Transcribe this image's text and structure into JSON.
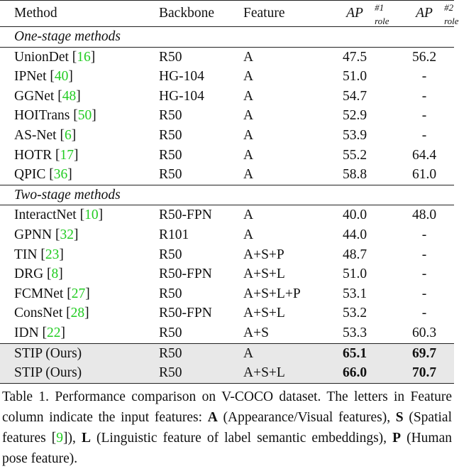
{
  "table": {
    "header": {
      "method": "Method",
      "backbone": "Backbone",
      "feature": "Feature",
      "ap1": {
        "base": "AP",
        "sup": "#1",
        "sub": "role"
      },
      "ap2": {
        "base": "AP",
        "sup": "#2",
        "sub": "role"
      }
    },
    "sections": [
      {
        "title": "One-stage methods",
        "rows": [
          {
            "method": [
              "UnionDet [",
              "16",
              "]"
            ],
            "backbone": "R50",
            "feature": "A",
            "ap1": "47.5",
            "ap2": "56.2"
          },
          {
            "method": [
              "IPNet [",
              "40",
              "]"
            ],
            "backbone": "HG-104",
            "feature": "A",
            "ap1": "51.0",
            "ap2": "-"
          },
          {
            "method": [
              "GGNet [",
              "48",
              "]"
            ],
            "backbone": "HG-104",
            "feature": "A",
            "ap1": "54.7",
            "ap2": "-"
          },
          {
            "method": [
              "HOITrans [",
              "50",
              "]"
            ],
            "backbone": "R50",
            "feature": "A",
            "ap1": "52.9",
            "ap2": "-"
          },
          {
            "method": [
              "AS-Net [",
              "6",
              "]"
            ],
            "backbone": "R50",
            "feature": "A",
            "ap1": "53.9",
            "ap2": "-"
          },
          {
            "method": [
              "HOTR [",
              "17",
              "]"
            ],
            "backbone": "R50",
            "feature": "A",
            "ap1": "55.2",
            "ap2": "64.4"
          },
          {
            "method": [
              "QPIC [",
              "36",
              "]"
            ],
            "backbone": "R50",
            "feature": "A",
            "ap1": "58.8",
            "ap2": "61.0"
          }
        ]
      },
      {
        "title": "Two-stage methods",
        "rows": [
          {
            "method": [
              "InteractNet [",
              "10",
              "]"
            ],
            "backbone": "R50-FPN",
            "feature": "A",
            "ap1": "40.0",
            "ap2": "48.0"
          },
          {
            "method": [
              "GPNN [",
              "32",
              "]"
            ],
            "backbone": "R101",
            "feature": "A",
            "ap1": "44.0",
            "ap2": "-"
          },
          {
            "method": [
              "TIN [",
              "23",
              "]"
            ],
            "backbone": "R50",
            "feature": "A+S+P",
            "ap1": "48.7",
            "ap2": "-"
          },
          {
            "method": [
              "DRG [",
              "8",
              "]"
            ],
            "backbone": "R50-FPN",
            "feature": "A+S+L",
            "ap1": "51.0",
            "ap2": "-"
          },
          {
            "method": [
              "FCMNet [",
              "27",
              "]"
            ],
            "backbone": "R50",
            "feature": "A+S+L+P",
            "ap1": "53.1",
            "ap2": "-"
          },
          {
            "method": [
              "ConsNet [",
              "28",
              "]"
            ],
            "backbone": "R50-FPN",
            "feature": "A+S+L",
            "ap1": "53.2",
            "ap2": "-"
          },
          {
            "method": [
              "IDN [",
              "22",
              "]"
            ],
            "backbone": "R50",
            "feature": "A+S",
            "ap1": "53.3",
            "ap2": "60.3"
          }
        ]
      },
      {
        "rows": [
          {
            "method": [
              "STIP (Ours)"
            ],
            "backbone": "R50",
            "feature": "A",
            "ap1": "65.1",
            "ap2": "69.7"
          },
          {
            "method": [
              "STIP (Ours)"
            ],
            "backbone": "R50",
            "feature": "A+S+L",
            "ap1": "66.0",
            "ap2": "70.7"
          }
        ]
      }
    ]
  },
  "caption": [
    "Table 1. Performance comparison on V-COCO dataset. The letters in Feature column indicate the input features: ",
    "A",
    " (Appearance/Visual features), ",
    "S",
    " (Spatial features [",
    "9",
    "]), ",
    "L",
    " (Linguistic feature of label semantic embeddings), ",
    "P",
    " (Human pose feature)."
  ]
}
